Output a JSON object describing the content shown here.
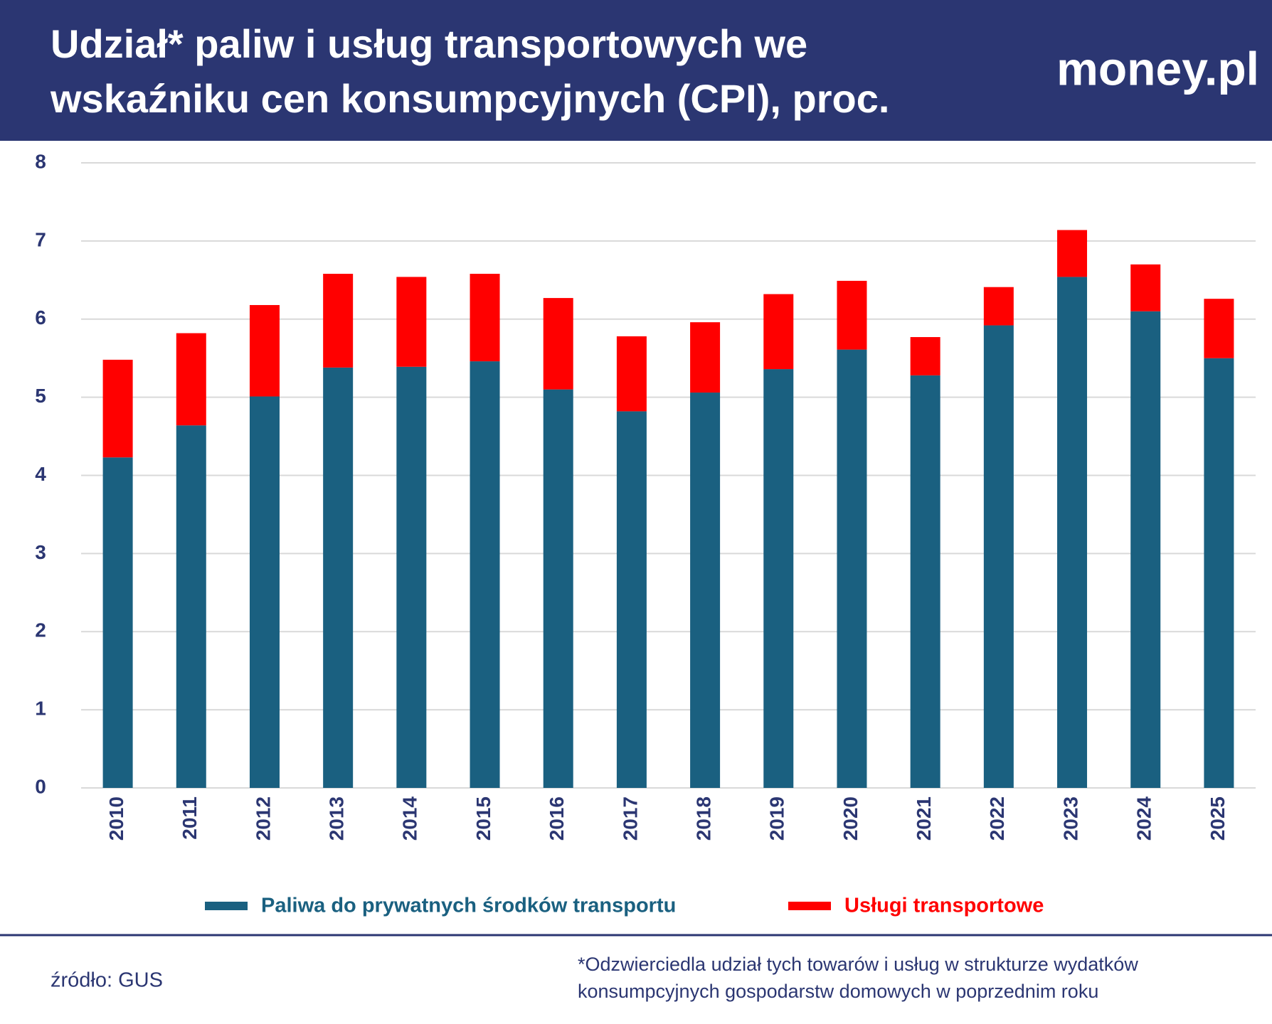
{
  "chart_data": {
    "type": "stacked_bar",
    "title": [
      "Udział* paliw i usług transportowych we",
      "wskaźniku cen konsumpcyjnych (CPI), proc."
    ],
    "logo": "money.pl",
    "categories": [
      "2010",
      "2011",
      "2012",
      "2013",
      "2014",
      "2015",
      "2016",
      "2017",
      "2018",
      "2019",
      "2020",
      "2021",
      "2022",
      "2023",
      "2024",
      "2025"
    ],
    "series": [
      {
        "name": "Paliwa do prywatnych środków transportu",
        "color": "#1a6080",
        "values": [
          4.23,
          4.64,
          5.01,
          5.38,
          5.39,
          5.46,
          5.1,
          4.82,
          5.06,
          5.36,
          5.61,
          5.28,
          5.92,
          6.54,
          6.1,
          5.5
        ]
      },
      {
        "name": "Usługi transportowe",
        "color": "#ff0000",
        "values": [
          1.25,
          1.18,
          1.17,
          1.2,
          1.15,
          1.12,
          1.17,
          0.96,
          0.9,
          0.96,
          0.88,
          0.49,
          0.49,
          0.6,
          0.6,
          0.76
        ]
      }
    ],
    "ylim": [
      0,
      8
    ],
    "yticks": [
      0,
      1,
      2,
      3,
      4,
      5,
      6,
      7,
      8
    ],
    "grid": true,
    "source": "źródło: GUS",
    "note": [
      "*Odzwierciedla udział tych towarów i usług w strukturze wydatków",
      "konsumpcyjnych gospodarstw domowych w poprzednim roku"
    ]
  }
}
